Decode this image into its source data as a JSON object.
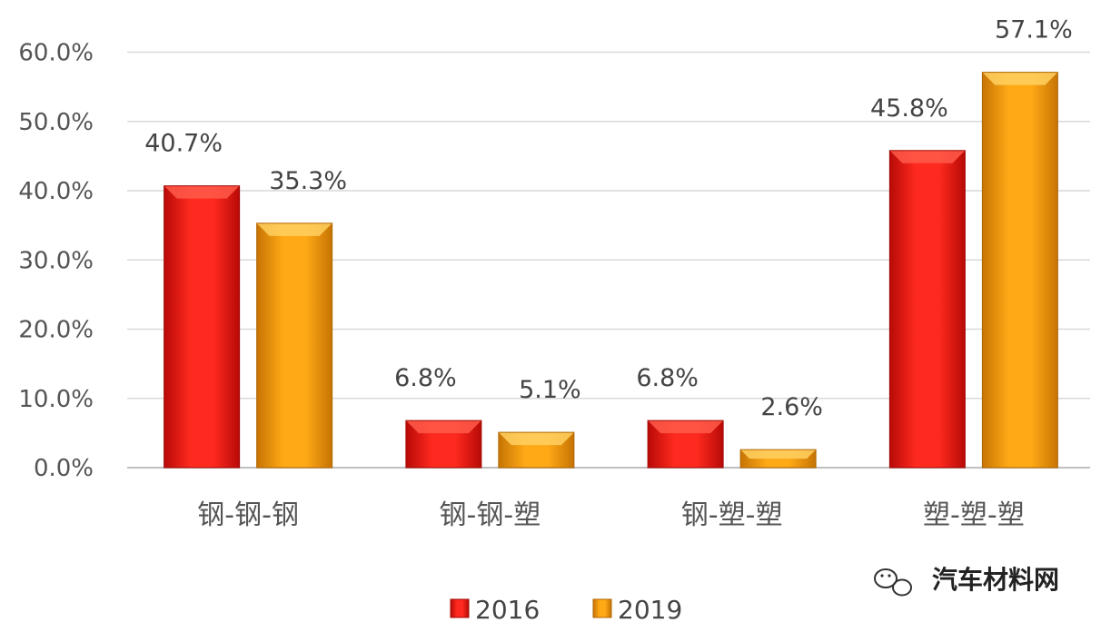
{
  "chart_data": {
    "type": "bar",
    "categories": [
      "钢-钢-钢",
      "钢-钢-塑",
      "钢-塑-塑",
      "塑-塑-塑"
    ],
    "series": [
      {
        "name": "2016",
        "values": [
          40.7,
          6.8,
          6.8,
          45.8
        ],
        "labels": [
          "40.7%",
          "6.8%",
          "6.8%",
          "45.8%"
        ],
        "color": "#e3130f"
      },
      {
        "name": "2019",
        "values": [
          35.3,
          5.1,
          2.6,
          57.1
        ],
        "labels": [
          "35.3%",
          "5.1%",
          "2.6%",
          "57.1%"
        ],
        "color": "#f39a0b"
      }
    ],
    "y_ticks": [
      "0.0%",
      "10.0%",
      "20.0%",
      "30.0%",
      "40.0%",
      "50.0%",
      "60.0%"
    ],
    "ylim": [
      0,
      60
    ],
    "grid": true,
    "legend_position": "bottom-center",
    "title": "",
    "xlabel": "",
    "ylabel": ""
  },
  "watermark": {
    "text": "汽车材料网",
    "icon": "wechat-icon"
  },
  "colors": {
    "gridline": "#d9d9d9",
    "axis": "#bfbfbf",
    "series_2016": "#e3130f",
    "series_2019": "#f39a0b"
  }
}
